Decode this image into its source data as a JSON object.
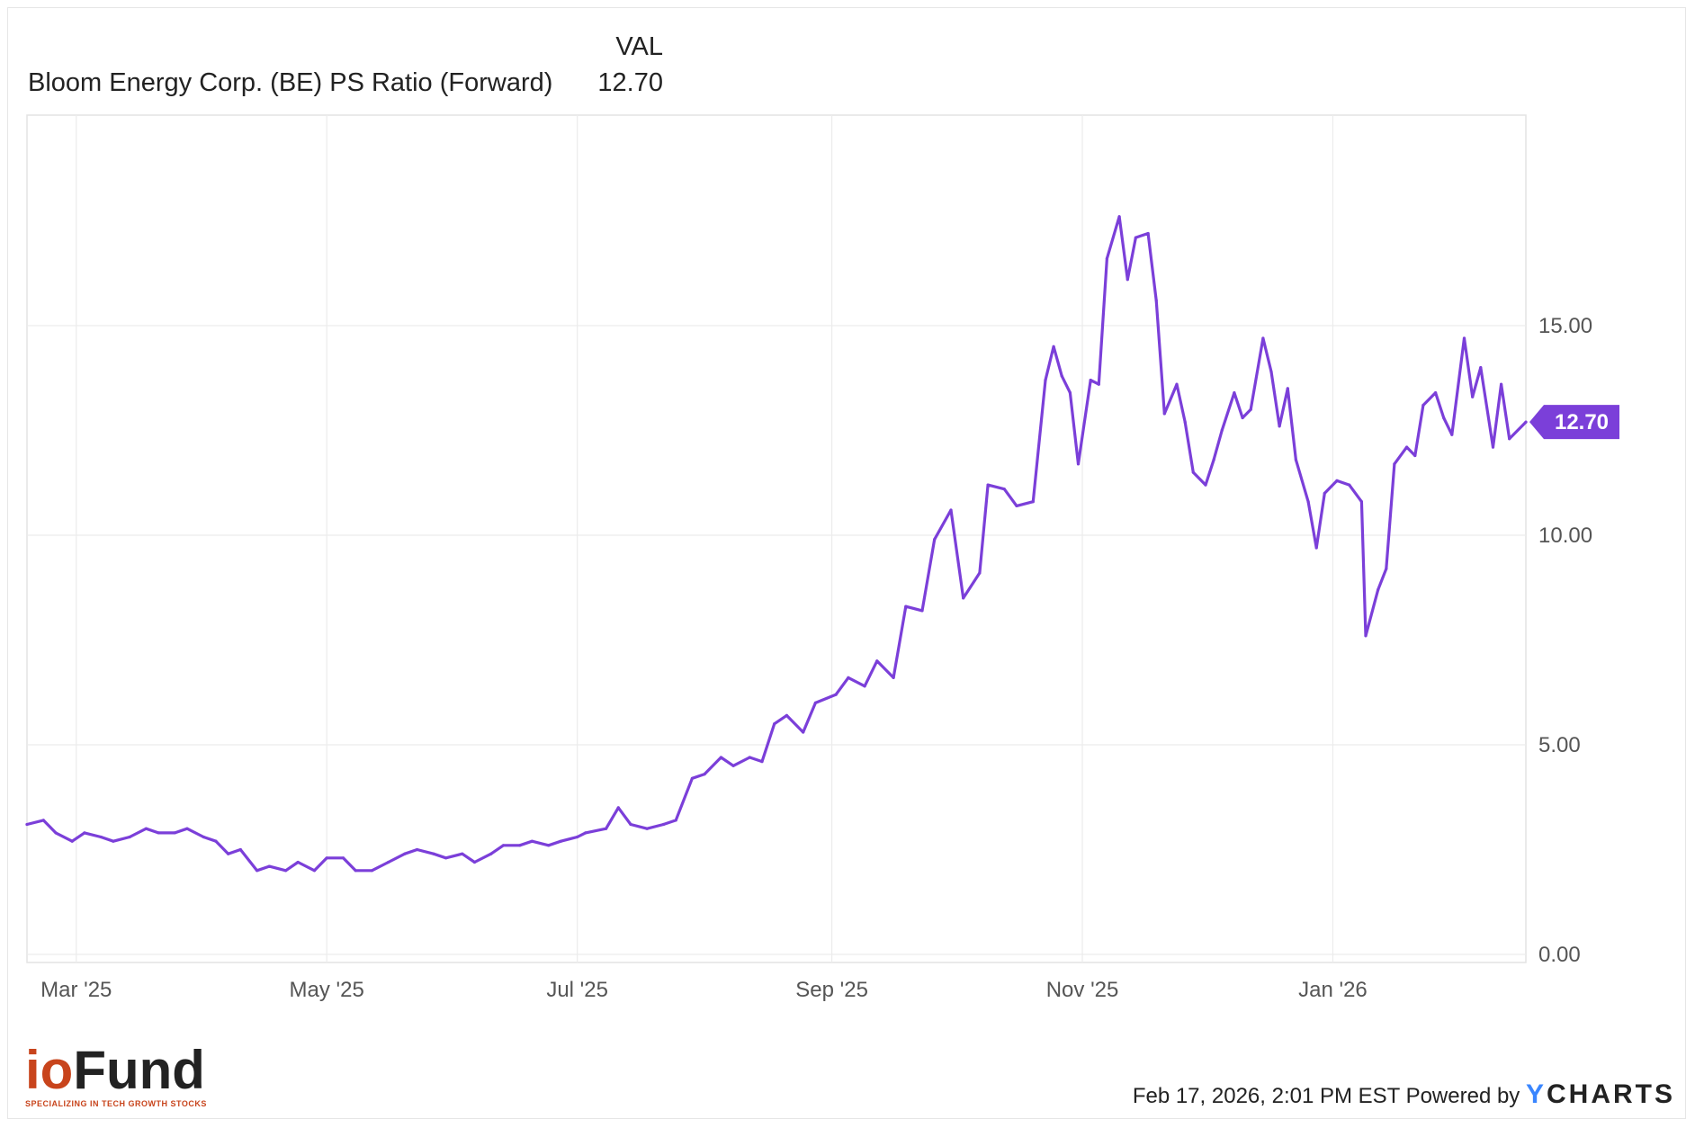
{
  "legend": {
    "column_header": "VAL",
    "series_name": "Bloom Energy Corp. (BE) PS Ratio (Forward)",
    "series_value": "12.70"
  },
  "chart_data": {
    "type": "line",
    "title": "",
    "xlabel": "",
    "ylabel": "",
    "ylim": [
      0,
      20
    ],
    "y_ticks": [
      "0.00",
      "5.00",
      "10.00",
      "15.00"
    ],
    "y_tick_values": [
      0,
      5,
      10,
      15
    ],
    "x_ticks": [
      "Mar '25",
      "May '25",
      "Jul '25",
      "Sep '25",
      "Nov '25",
      "Jan '26"
    ],
    "x_tick_dates": [
      "2025-03-01",
      "2025-05-01",
      "2025-07-01",
      "2025-09-01",
      "2025-11-01",
      "2026-01-01"
    ],
    "xlim": [
      "2025-02-17",
      "2026-02-17"
    ],
    "grid": true,
    "last_value_label": "12.70",
    "line_color": "#7b3fd9",
    "series": [
      {
        "name": "Bloom Energy Corp. (BE) PS Ratio (Forward)",
        "points": [
          [
            "2025-02-17",
            3.1
          ],
          [
            "2025-02-21",
            3.2
          ],
          [
            "2025-02-24",
            2.9
          ],
          [
            "2025-02-28",
            2.7
          ],
          [
            "2025-03-03",
            2.9
          ],
          [
            "2025-03-07",
            2.8
          ],
          [
            "2025-03-10",
            2.7
          ],
          [
            "2025-03-14",
            2.8
          ],
          [
            "2025-03-18",
            3.0
          ],
          [
            "2025-03-21",
            2.9
          ],
          [
            "2025-03-25",
            2.9
          ],
          [
            "2025-03-28",
            3.0
          ],
          [
            "2025-04-01",
            2.8
          ],
          [
            "2025-04-04",
            2.7
          ],
          [
            "2025-04-07",
            2.4
          ],
          [
            "2025-04-10",
            2.5
          ],
          [
            "2025-04-14",
            2.0
          ],
          [
            "2025-04-17",
            2.1
          ],
          [
            "2025-04-21",
            2.0
          ],
          [
            "2025-04-24",
            2.2
          ],
          [
            "2025-04-28",
            2.0
          ],
          [
            "2025-05-01",
            2.3
          ],
          [
            "2025-05-05",
            2.3
          ],
          [
            "2025-05-08",
            2.0
          ],
          [
            "2025-05-12",
            2.0
          ],
          [
            "2025-05-16",
            2.2
          ],
          [
            "2025-05-20",
            2.4
          ],
          [
            "2025-05-23",
            2.5
          ],
          [
            "2025-05-27",
            2.4
          ],
          [
            "2025-05-30",
            2.3
          ],
          [
            "2025-06-03",
            2.4
          ],
          [
            "2025-06-06",
            2.2
          ],
          [
            "2025-06-10",
            2.4
          ],
          [
            "2025-06-13",
            2.6
          ],
          [
            "2025-06-17",
            2.6
          ],
          [
            "2025-06-20",
            2.7
          ],
          [
            "2025-06-24",
            2.6
          ],
          [
            "2025-06-27",
            2.7
          ],
          [
            "2025-07-01",
            2.8
          ],
          [
            "2025-07-03",
            2.9
          ],
          [
            "2025-07-08",
            3.0
          ],
          [
            "2025-07-11",
            3.5
          ],
          [
            "2025-07-14",
            3.1
          ],
          [
            "2025-07-18",
            3.0
          ],
          [
            "2025-07-22",
            3.1
          ],
          [
            "2025-07-25",
            3.2
          ],
          [
            "2025-07-29",
            4.2
          ],
          [
            "2025-08-01",
            4.3
          ],
          [
            "2025-08-05",
            4.7
          ],
          [
            "2025-08-08",
            4.5
          ],
          [
            "2025-08-12",
            4.7
          ],
          [
            "2025-08-15",
            4.6
          ],
          [
            "2025-08-18",
            5.5
          ],
          [
            "2025-08-21",
            5.7
          ],
          [
            "2025-08-25",
            5.3
          ],
          [
            "2025-08-28",
            6.0
          ],
          [
            "2025-09-02",
            6.2
          ],
          [
            "2025-09-05",
            6.6
          ],
          [
            "2025-09-09",
            6.4
          ],
          [
            "2025-09-12",
            7.0
          ],
          [
            "2025-09-16",
            6.6
          ],
          [
            "2025-09-19",
            8.3
          ],
          [
            "2025-09-23",
            8.2
          ],
          [
            "2025-09-26",
            9.9
          ],
          [
            "2025-09-30",
            10.6
          ],
          [
            "2025-10-03",
            8.5
          ],
          [
            "2025-10-07",
            9.1
          ],
          [
            "2025-10-09",
            11.2
          ],
          [
            "2025-10-13",
            11.1
          ],
          [
            "2025-10-16",
            10.7
          ],
          [
            "2025-10-20",
            10.8
          ],
          [
            "2025-10-23",
            13.7
          ],
          [
            "2025-10-25",
            14.5
          ],
          [
            "2025-10-27",
            13.8
          ],
          [
            "2025-10-29",
            13.4
          ],
          [
            "2025-10-31",
            11.7
          ],
          [
            "2025-11-03",
            13.7
          ],
          [
            "2025-11-05",
            13.6
          ],
          [
            "2025-11-07",
            16.6
          ],
          [
            "2025-11-10",
            17.6
          ],
          [
            "2025-11-12",
            16.1
          ],
          [
            "2025-11-14",
            17.1
          ],
          [
            "2025-11-17",
            17.2
          ],
          [
            "2025-11-19",
            15.6
          ],
          [
            "2025-11-21",
            12.9
          ],
          [
            "2025-11-24",
            13.6
          ],
          [
            "2025-11-26",
            12.7
          ],
          [
            "2025-11-28",
            11.5
          ],
          [
            "2025-12-01",
            11.2
          ],
          [
            "2025-12-03",
            11.8
          ],
          [
            "2025-12-05",
            12.5
          ],
          [
            "2025-12-08",
            13.4
          ],
          [
            "2025-12-10",
            12.8
          ],
          [
            "2025-12-12",
            13.0
          ],
          [
            "2025-12-15",
            14.7
          ],
          [
            "2025-12-17",
            13.9
          ],
          [
            "2025-12-19",
            12.6
          ],
          [
            "2025-12-21",
            13.5
          ],
          [
            "2025-12-23",
            11.8
          ],
          [
            "2025-12-26",
            10.8
          ],
          [
            "2025-12-28",
            9.7
          ],
          [
            "2025-12-30",
            11.0
          ],
          [
            "2026-01-02",
            11.3
          ],
          [
            "2026-01-05",
            11.2
          ],
          [
            "2026-01-08",
            10.8
          ],
          [
            "2026-01-09",
            7.6
          ],
          [
            "2026-01-12",
            8.7
          ],
          [
            "2026-01-14",
            9.2
          ],
          [
            "2026-01-16",
            11.7
          ],
          [
            "2026-01-19",
            12.1
          ],
          [
            "2026-01-21",
            11.9
          ],
          [
            "2026-01-23",
            13.1
          ],
          [
            "2026-01-26",
            13.4
          ],
          [
            "2026-01-28",
            12.8
          ],
          [
            "2026-01-30",
            12.4
          ],
          [
            "2026-02-02",
            14.7
          ],
          [
            "2026-02-04",
            13.3
          ],
          [
            "2026-02-06",
            14.0
          ],
          [
            "2026-02-09",
            12.1
          ],
          [
            "2026-02-11",
            13.6
          ],
          [
            "2026-02-13",
            12.3
          ],
          [
            "2026-02-17",
            12.7
          ]
        ]
      }
    ]
  },
  "branding": {
    "logo_io": "io",
    "logo_fund": "Fund",
    "logo_tagline": "SPECIALIZING IN TECH GROWTH STOCKS",
    "timestamp": "Feb 17, 2026, 2:01 PM EST",
    "powered_by": "Powered by",
    "provider_y": "Y",
    "provider_rest": "CHARTS"
  }
}
